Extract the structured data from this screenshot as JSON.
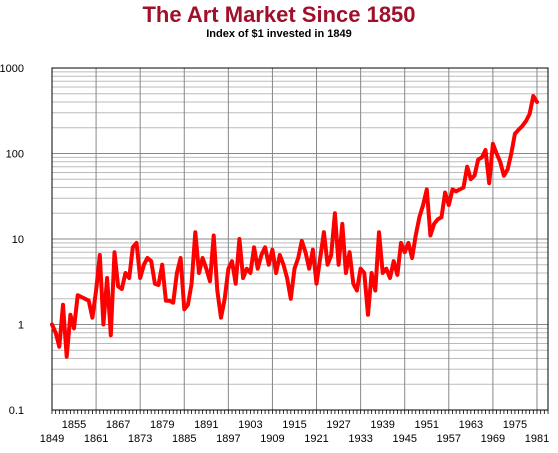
{
  "chart_data": {
    "type": "line",
    "title": "The Art Market Since 1850",
    "subtitle": "Index of $1 invested in 1849",
    "xlabel": "",
    "ylabel": "",
    "scale": {
      "y": "log"
    },
    "xlim": [
      1849,
      1984
    ],
    "ylim": [
      0.1,
      1000
    ],
    "grid": true,
    "line_color": "#ff0000",
    "y_ticks": [
      {
        "value": 1000,
        "label": "1000"
      },
      {
        "value": 100,
        "label": "100"
      },
      {
        "value": 10,
        "label": "10"
      },
      {
        "value": 1,
        "label": "1"
      },
      {
        "value": 0.1,
        "label": "0.1"
      }
    ],
    "x_ticks_upper": [
      {
        "value": 1855,
        "label": "1855"
      },
      {
        "value": 1867,
        "label": "1867"
      },
      {
        "value": 1879,
        "label": "1879"
      },
      {
        "value": 1891,
        "label": "1891"
      },
      {
        "value": 1903,
        "label": "1903"
      },
      {
        "value": 1915,
        "label": "1915"
      },
      {
        "value": 1927,
        "label": "1927"
      },
      {
        "value": 1939,
        "label": "1939"
      },
      {
        "value": 1951,
        "label": "1951"
      },
      {
        "value": 1963,
        "label": "1963"
      },
      {
        "value": 1975,
        "label": "1975"
      }
    ],
    "x_ticks_lower": [
      {
        "value": 1849,
        "label": "1849"
      },
      {
        "value": 1861,
        "label": "1861"
      },
      {
        "value": 1873,
        "label": "1873"
      },
      {
        "value": 1885,
        "label": "1885"
      },
      {
        "value": 1897,
        "label": "1897"
      },
      {
        "value": 1909,
        "label": "1909"
      },
      {
        "value": 1921,
        "label": "1921"
      },
      {
        "value": 1933,
        "label": "1933"
      },
      {
        "value": 1945,
        "label": "1945"
      },
      {
        "value": 1957,
        "label": "1957"
      },
      {
        "value": 1969,
        "label": "1969"
      },
      {
        "value": 1981,
        "label": "1981"
      }
    ],
    "series": [
      {
        "points": [
          [
            1849,
            1.0
          ],
          [
            1850,
            0.8
          ],
          [
            1851,
            0.55
          ],
          [
            1852,
            1.7
          ],
          [
            1853,
            0.42
          ],
          [
            1854,
            1.3
          ],
          [
            1855,
            0.9
          ],
          [
            1856,
            2.2
          ],
          [
            1857,
            2.1
          ],
          [
            1858,
            2.0
          ],
          [
            1859,
            1.9
          ],
          [
            1860,
            1.2
          ],
          [
            1861,
            2.5
          ],
          [
            1862,
            6.5
          ],
          [
            1863,
            1.0
          ],
          [
            1864,
            3.5
          ],
          [
            1865,
            0.75
          ],
          [
            1866,
            7.0
          ],
          [
            1867,
            2.8
          ],
          [
            1868,
            2.6
          ],
          [
            1869,
            4.0
          ],
          [
            1870,
            3.5
          ],
          [
            1871,
            8.0
          ],
          [
            1872,
            9.0
          ],
          [
            1873,
            3.5
          ],
          [
            1874,
            5.0
          ],
          [
            1875,
            6.0
          ],
          [
            1876,
            5.5
          ],
          [
            1877,
            3.0
          ],
          [
            1878,
            2.9
          ],
          [
            1879,
            5.0
          ],
          [
            1880,
            1.9
          ],
          [
            1881,
            1.9
          ],
          [
            1882,
            1.8
          ],
          [
            1883,
            4.0
          ],
          [
            1884,
            6.0
          ],
          [
            1885,
            1.5
          ],
          [
            1886,
            1.7
          ],
          [
            1887,
            3.0
          ],
          [
            1888,
            12.0
          ],
          [
            1889,
            4.0
          ],
          [
            1890,
            6.0
          ],
          [
            1891,
            4.5
          ],
          [
            1892,
            3.2
          ],
          [
            1893,
            11.0
          ],
          [
            1894,
            2.5
          ],
          [
            1895,
            1.2
          ],
          [
            1896,
            2.0
          ],
          [
            1897,
            4.5
          ],
          [
            1898,
            5.5
          ],
          [
            1899,
            3.0
          ],
          [
            1900,
            10.0
          ],
          [
            1901,
            3.5
          ],
          [
            1902,
            4.5
          ],
          [
            1903,
            4.0
          ],
          [
            1904,
            8.0
          ],
          [
            1905,
            4.5
          ],
          [
            1906,
            6.5
          ],
          [
            1907,
            8.0
          ],
          [
            1908,
            5.0
          ],
          [
            1909,
            7.5
          ],
          [
            1910,
            4.0
          ],
          [
            1911,
            6.5
          ],
          [
            1912,
            5.0
          ],
          [
            1913,
            3.5
          ],
          [
            1914,
            2.0
          ],
          [
            1915,
            4.5
          ],
          [
            1916,
            6.0
          ],
          [
            1917,
            9.5
          ],
          [
            1918,
            7.0
          ],
          [
            1919,
            4.5
          ],
          [
            1920,
            7.5
          ],
          [
            1921,
            3.0
          ],
          [
            1922,
            6.0
          ],
          [
            1923,
            12.0
          ],
          [
            1924,
            5.0
          ],
          [
            1925,
            6.5
          ],
          [
            1926,
            20.0
          ],
          [
            1927,
            5.0
          ],
          [
            1928,
            15.0
          ],
          [
            1929,
            4.0
          ],
          [
            1930,
            7.0
          ],
          [
            1931,
            3.0
          ],
          [
            1932,
            2.5
          ],
          [
            1933,
            4.5
          ],
          [
            1934,
            4.0
          ],
          [
            1935,
            1.3
          ],
          [
            1936,
            4.0
          ],
          [
            1937,
            2.5
          ],
          [
            1938,
            12.0
          ],
          [
            1939,
            4.0
          ],
          [
            1940,
            4.5
          ],
          [
            1941,
            3.5
          ],
          [
            1942,
            5.5
          ],
          [
            1943,
            3.8
          ],
          [
            1944,
            9.0
          ],
          [
            1945,
            7.0
          ],
          [
            1946,
            9.0
          ],
          [
            1947,
            6.0
          ],
          [
            1948,
            11.0
          ],
          [
            1949,
            18.0
          ],
          [
            1950,
            25.0
          ],
          [
            1951,
            38.0
          ],
          [
            1952,
            11.0
          ],
          [
            1953,
            15.0
          ],
          [
            1954,
            17.0
          ],
          [
            1955,
            18.0
          ],
          [
            1956,
            35.0
          ],
          [
            1957,
            25.0
          ],
          [
            1958,
            38.0
          ],
          [
            1959,
            36.0
          ],
          [
            1960,
            38.0
          ],
          [
            1961,
            40.0
          ],
          [
            1962,
            70.0
          ],
          [
            1963,
            50.0
          ],
          [
            1964,
            55.0
          ],
          [
            1965,
            85.0
          ],
          [
            1966,
            90.0
          ],
          [
            1967,
            110.0
          ],
          [
            1968,
            45.0
          ],
          [
            1969,
            130.0
          ],
          [
            1970,
            100.0
          ],
          [
            1971,
            80.0
          ],
          [
            1972,
            55.0
          ],
          [
            1973,
            65.0
          ],
          [
            1974,
            100.0
          ],
          [
            1975,
            170.0
          ],
          [
            1976,
            190.0
          ],
          [
            1977,
            210.0
          ],
          [
            1978,
            240.0
          ],
          [
            1979,
            290.0
          ],
          [
            1980,
            470.0
          ],
          [
            1981,
            400.0
          ]
        ]
      }
    ]
  }
}
